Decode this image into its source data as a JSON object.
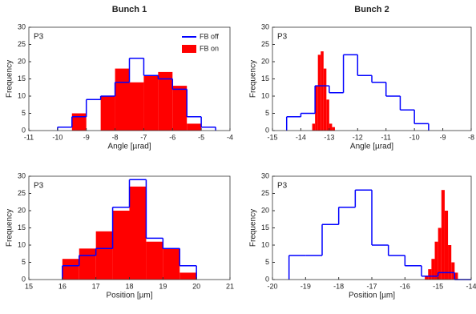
{
  "chart_data": [
    {
      "type": "histogram",
      "title": "Bunch 1",
      "annotation": "P3",
      "xlabel": "Angle [µrad]",
      "ylabel": "Frequency",
      "legend": "northeast",
      "xlim": [
        -11,
        -4
      ],
      "xticks": [
        -11,
        -10,
        -9,
        -8,
        -7,
        -6,
        -5,
        -4
      ],
      "ylim": [
        0,
        30
      ],
      "yticks": [
        0,
        5,
        10,
        15,
        20,
        25,
        30
      ],
      "series": [
        {
          "name": "FB on",
          "style": "filled",
          "color": "#ff0000",
          "bins": [
            -10,
            -9.5,
            -9,
            -8.5,
            -8,
            -7.5,
            -7,
            -6.5,
            -6,
            -5.5,
            -5,
            -4.5
          ],
          "values": [
            0,
            5,
            0,
            10,
            18,
            14,
            16,
            17,
            13,
            2,
            0
          ]
        },
        {
          "name": "FB off",
          "style": "step",
          "color": "#0000ff",
          "bins": [
            -10,
            -9.5,
            -9,
            -8.5,
            -8,
            -7.5,
            -7,
            -6.5,
            -6,
            -5.5,
            -5,
            -4.5
          ],
          "values": [
            1,
            4,
            9,
            10,
            14,
            21,
            16,
            15,
            12,
            4,
            1
          ]
        }
      ]
    },
    {
      "type": "histogram",
      "title": "Bunch 2",
      "annotation": "P3",
      "xlabel": "Angle [µrad]",
      "ylabel": "Frequency",
      "xlim": [
        -15,
        -8
      ],
      "xticks": [
        -15,
        -14,
        -13,
        -12,
        -11,
        -10,
        -9,
        -8
      ],
      "ylim": [
        0,
        30
      ],
      "yticks": [
        0,
        5,
        10,
        15,
        20,
        25,
        30
      ],
      "series": [
        {
          "style": "filled",
          "color": "#ff0000",
          "bins": [
            -13.6,
            -13.5,
            -13.4,
            -13.3,
            -13.2,
            -13.1,
            -13.0,
            -12.9,
            -12.8
          ],
          "values": [
            2,
            13,
            22,
            23,
            18,
            9,
            2,
            1
          ]
        },
        {
          "style": "step",
          "color": "#0000ff",
          "bins": [
            -14.5,
            -14,
            -13.5,
            -13,
            -12.5,
            -12,
            -11.5,
            -11,
            -10.5,
            -10,
            -9.5
          ],
          "values": [
            4,
            5,
            13,
            11,
            22,
            16,
            14,
            10,
            6,
            2
          ]
        }
      ]
    },
    {
      "type": "histogram",
      "annotation": "P3",
      "xlabel": "Position [µm]",
      "ylabel": "Frequency",
      "xlim": [
        15,
        21
      ],
      "xticks": [
        15,
        16,
        17,
        18,
        19,
        20,
        21
      ],
      "ylim": [
        0,
        30
      ],
      "yticks": [
        0,
        5,
        10,
        15,
        20,
        25,
        30
      ],
      "series": [
        {
          "style": "filled",
          "color": "#ff0000",
          "bins": [
            16,
            16.5,
            17,
            17.5,
            18,
            18.5,
            19,
            19.5,
            20
          ],
          "values": [
            6,
            9,
            14,
            20,
            27,
            11,
            9,
            2
          ]
        },
        {
          "style": "step",
          "color": "#0000ff",
          "bins": [
            16,
            16.5,
            17,
            17.5,
            18,
            18.5,
            19,
            19.5,
            20
          ],
          "values": [
            4,
            7,
            9,
            21,
            29,
            12,
            9,
            4
          ]
        }
      ]
    },
    {
      "type": "histogram",
      "annotation": "P3",
      "xlabel": "Position [µm]",
      "ylabel": "Frequency",
      "xlim": [
        -20,
        -14
      ],
      "xticks": [
        -20,
        -19,
        -18,
        -17,
        -16,
        -15,
        -14
      ],
      "ylim": [
        0,
        30
      ],
      "yticks": [
        0,
        5,
        10,
        15,
        20,
        25,
        30
      ],
      "series": [
        {
          "style": "filled",
          "color": "#ff0000",
          "bins": [
            -15.4,
            -15.3,
            -15.2,
            -15.1,
            -15.0,
            -14.9,
            -14.8,
            -14.7,
            -14.6,
            -14.5,
            -14.4
          ],
          "values": [
            1,
            3,
            6,
            11,
            15,
            26,
            20,
            10,
            5,
            2
          ]
        },
        {
          "style": "step",
          "color": "#0000ff",
          "bins": [
            -19.5,
            -19,
            -18.5,
            -18,
            -17.5,
            -17,
            -16.5,
            -16,
            -15.5,
            -15,
            -14.5,
            -14
          ],
          "values": [
            7,
            7,
            16,
            21,
            26,
            10,
            7,
            4,
            1,
            2,
            0
          ]
        }
      ]
    }
  ]
}
